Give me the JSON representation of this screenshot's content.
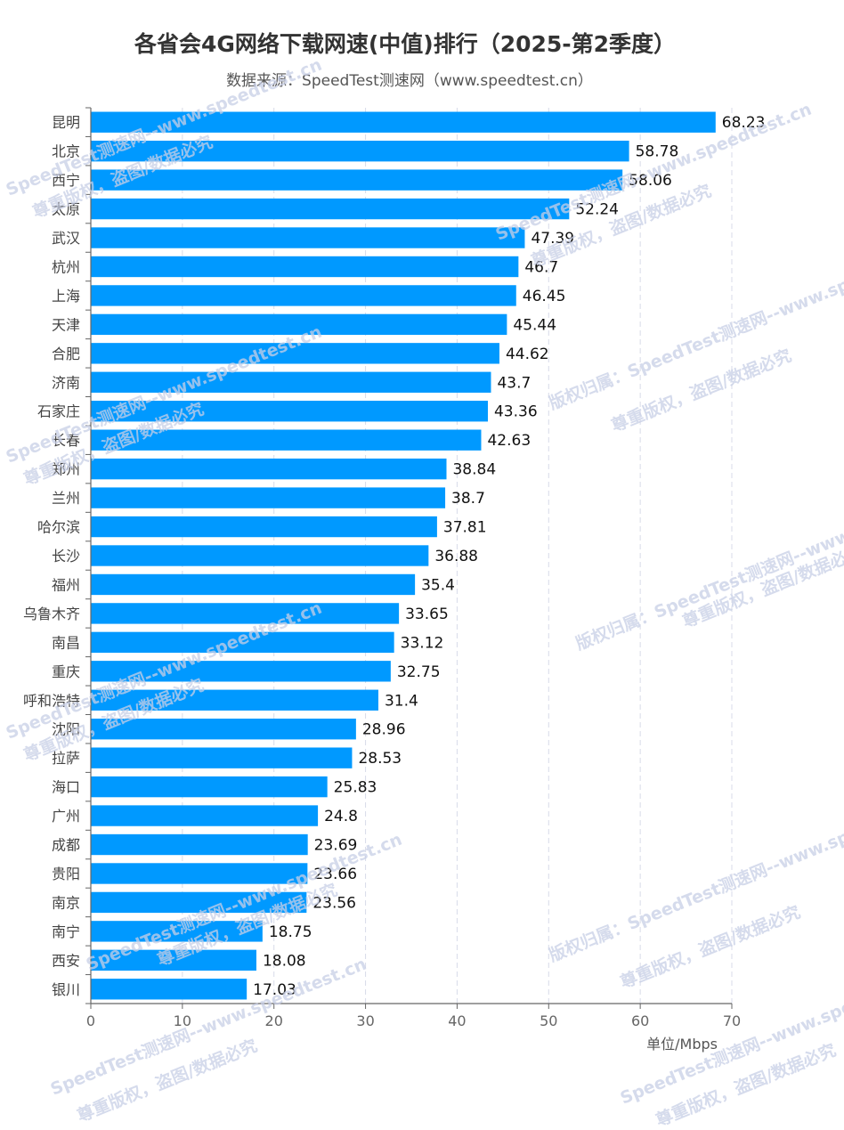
{
  "chart_data": {
    "type": "bar",
    "orientation": "horizontal",
    "title": "各省会4G网络下载网速(中值)排行（2025-第2季度）",
    "subtitle": "数据来源：SpeedTest测速网（www.speedtest.cn）",
    "xlabel": "单位/Mbps",
    "ylabel": "",
    "xlim": [
      0,
      70
    ],
    "xticks": [
      0,
      10,
      20,
      30,
      40,
      50,
      60,
      70
    ],
    "grid": true,
    "bar_color": "#0099ff",
    "categories": [
      "昆明",
      "北京",
      "西宁",
      "太原",
      "武汉",
      "杭州",
      "上海",
      "天津",
      "合肥",
      "济南",
      "石家庄",
      "长春",
      "郑州",
      "兰州",
      "哈尔滨",
      "长沙",
      "福州",
      "乌鲁木齐",
      "南昌",
      "重庆",
      "呼和浩特",
      "沈阳",
      "拉萨",
      "海口",
      "广州",
      "成都",
      "贵阳",
      "南京",
      "南宁",
      "西安",
      "银川"
    ],
    "values": [
      68.23,
      58.78,
      58.06,
      52.24,
      47.39,
      46.7,
      46.45,
      45.44,
      44.62,
      43.7,
      43.36,
      42.63,
      38.84,
      38.7,
      37.81,
      36.88,
      35.4,
      33.65,
      33.12,
      32.75,
      31.4,
      28.96,
      28.53,
      25.83,
      24.8,
      23.69,
      23.66,
      23.56,
      18.75,
      18.08,
      17.03
    ],
    "data_labels": [
      "68.23",
      "58.78",
      "58.06",
      "52.24",
      "47.39",
      "46.7",
      "46.45",
      "45.44",
      "44.62",
      "43.7",
      "43.36",
      "42.63",
      "38.84",
      "38.7",
      "37.81",
      "36.88",
      "35.4",
      "33.65",
      "33.12",
      "32.75",
      "31.4",
      "28.96",
      "28.53",
      "25.83",
      "24.8",
      "23.69",
      "23.66",
      "23.56",
      "18.75",
      "18.08",
      "17.03"
    ]
  },
  "watermark": {
    "line1": "SpeedTest测速网--www.speedtest.cn",
    "line2": "版权归属：SpeedTest测速网--www.speedtest.cn",
    "line3": "尊重版权，盗图/数据必究"
  }
}
